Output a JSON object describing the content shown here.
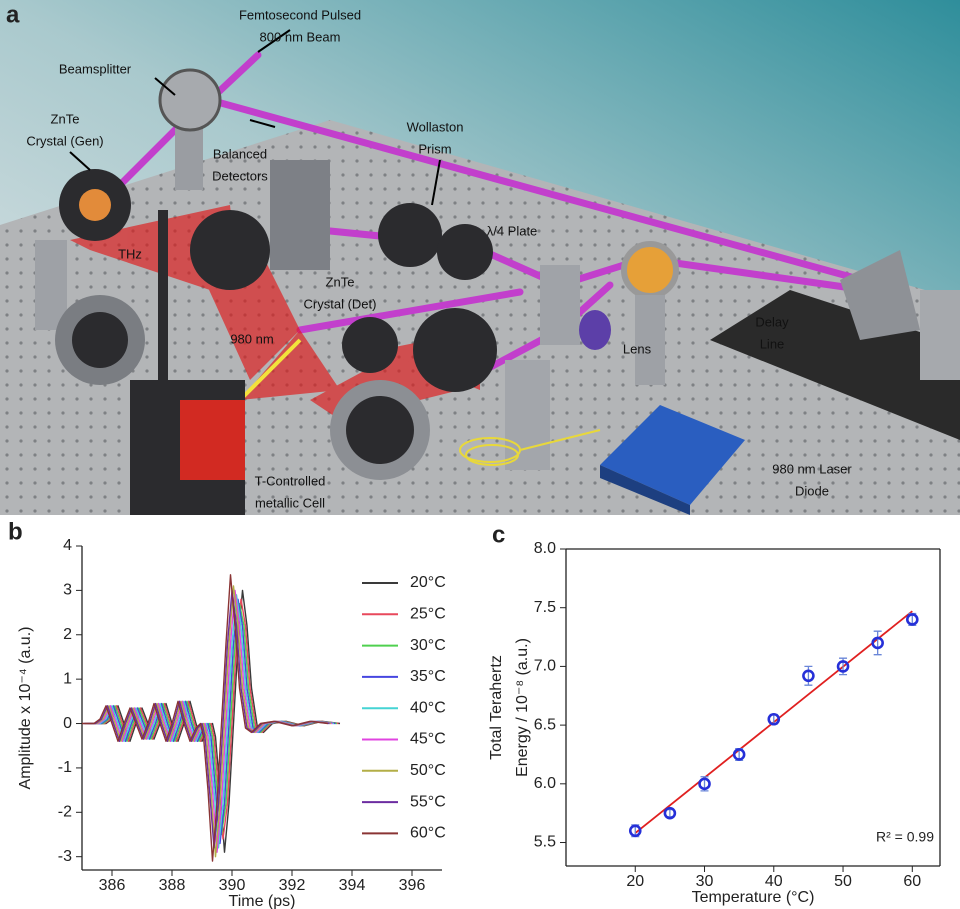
{
  "panel_a": {
    "label": "a",
    "annotations": [
      {
        "lines": [
          "Femtosecond Pulsed",
          "800 nm Beam"
        ]
      },
      {
        "lines": [
          "Beamsplitter"
        ]
      },
      {
        "lines": [
          "ZnTe",
          "Crystal (Gen)"
        ]
      },
      {
        "lines": [
          "Balanced",
          "Detectors"
        ]
      },
      {
        "lines": [
          "Wollaston",
          "Prism"
        ]
      },
      {
        "lines": [
          "λ/4 Plate"
        ]
      },
      {
        "lines": [
          "THz"
        ]
      },
      {
        "lines": [
          "ZnTe",
          "Crystal (Det)"
        ]
      },
      {
        "lines": [
          "980 nm"
        ]
      },
      {
        "lines": [
          "Lens"
        ]
      },
      {
        "lines": [
          "Delay",
          "Line"
        ]
      },
      {
        "lines": [
          "T-Controlled",
          "metallic Cell"
        ]
      },
      {
        "lines": [
          "980 nm Laser",
          "Diode"
        ]
      }
    ]
  },
  "chart_data": [
    {
      "type": "line",
      "panel": "b",
      "xlabel": "Time (ps)",
      "ylabel": "Amplitude x 10⁻⁴ (a.u.)",
      "xlim": [
        385,
        397
      ],
      "ylim": [
        -3.3,
        4
      ],
      "xticks": [
        386,
        388,
        390,
        392,
        394,
        396
      ],
      "yticks": [
        -3,
        -2,
        -1,
        0,
        1,
        2,
        3,
        4
      ],
      "legend": "right",
      "series": [
        {
          "name": "20°C",
          "color": "#3a3a3a",
          "x": [
            385.4,
            385.8,
            386.0,
            386.2,
            386.4,
            386.6,
            386.8,
            387.0,
            387.2,
            387.4,
            387.6,
            387.8,
            388.0,
            388.2,
            388.4,
            388.6,
            388.8,
            389.0,
            389.2,
            389.35,
            389.45,
            389.6,
            389.75,
            389.9,
            390.05,
            390.2,
            390.35,
            390.5,
            390.65,
            390.85,
            391.05,
            391.35,
            391.8,
            392.4,
            393.0,
            393.6
          ],
          "values": [
            0,
            0,
            0.1,
            0.4,
            0,
            -0.4,
            0,
            0.35,
            0,
            -0.35,
            0,
            0.45,
            0,
            -0.4,
            0,
            0.5,
            0,
            -0.4,
            -0.1,
            0,
            -0.3,
            -1.5,
            -2.9,
            -1.8,
            0,
            1.8,
            3.0,
            2.2,
            0.8,
            -0.1,
            -0.2,
            0,
            0.05,
            -0.05,
            0.05,
            0
          ]
        },
        {
          "name": "25°C",
          "color": "#e8485c",
          "x": [
            385.35,
            385.75,
            385.95,
            386.15,
            386.35,
            386.55,
            386.75,
            386.95,
            387.15,
            387.35,
            387.55,
            387.75,
            387.95,
            388.15,
            388.35,
            388.55,
            388.75,
            388.95,
            389.15,
            389.3,
            389.4,
            389.55,
            389.7,
            389.85,
            390.0,
            390.15,
            390.3,
            390.45,
            390.6,
            390.8,
            391.0,
            391.3,
            391.75,
            392.35,
            392.95,
            393.55
          ],
          "values": [
            0,
            0,
            0.1,
            0.4,
            0,
            -0.4,
            0,
            0.35,
            0,
            -0.35,
            0,
            0.45,
            0,
            -0.4,
            0,
            0.5,
            0,
            -0.4,
            -0.1,
            0,
            -0.3,
            -1.5,
            -2.6,
            -1.8,
            0,
            1.8,
            2.8,
            2.2,
            0.8,
            -0.1,
            -0.2,
            0,
            0.05,
            -0.05,
            0.05,
            0
          ]
        },
        {
          "name": "30°C",
          "color": "#4fd04f",
          "x": [
            385.3,
            385.7,
            385.9,
            386.1,
            386.3,
            386.5,
            386.7,
            386.9,
            387.1,
            387.3,
            387.5,
            387.7,
            387.9,
            388.1,
            388.3,
            388.5,
            388.7,
            388.9,
            389.1,
            389.25,
            389.35,
            389.5,
            389.65,
            389.8,
            389.95,
            390.1,
            390.25,
            390.4,
            390.55,
            390.75,
            390.95,
            391.25,
            391.7,
            392.3,
            392.9,
            393.5
          ],
          "values": [
            0,
            0,
            0.1,
            0.4,
            0,
            -0.4,
            0,
            0.35,
            0,
            -0.35,
            0,
            0.45,
            0,
            -0.4,
            0,
            0.5,
            0,
            -0.4,
            -0.1,
            0,
            -0.3,
            -1.5,
            -2.5,
            -1.8,
            0,
            1.8,
            2.7,
            2.2,
            0.8,
            -0.1,
            -0.2,
            0,
            0.05,
            -0.05,
            0.05,
            0
          ]
        },
        {
          "name": "35°C",
          "color": "#4646e0",
          "x": [
            385.25,
            385.65,
            385.85,
            386.05,
            386.25,
            386.45,
            386.65,
            386.85,
            387.05,
            387.25,
            387.45,
            387.65,
            387.85,
            388.05,
            388.25,
            388.45,
            388.65,
            388.85,
            389.05,
            389.2,
            389.3,
            389.45,
            389.6,
            389.75,
            389.9,
            390.05,
            390.2,
            390.35,
            390.5,
            390.7,
            390.9,
            391.2,
            391.65,
            392.25,
            392.85,
            393.45
          ],
          "values": [
            0,
            0,
            0.1,
            0.4,
            0,
            -0.4,
            0,
            0.35,
            0,
            -0.35,
            0,
            0.45,
            0,
            -0.4,
            0,
            0.5,
            0,
            -0.4,
            -0.1,
            0,
            -0.3,
            -1.5,
            -2.7,
            -1.8,
            0,
            1.8,
            2.8,
            2.2,
            0.8,
            -0.1,
            -0.2,
            0,
            0.05,
            -0.05,
            0.05,
            0
          ]
        },
        {
          "name": "40°C",
          "color": "#45d4d4",
          "x": [
            385.2,
            385.6,
            385.8,
            386.0,
            386.2,
            386.4,
            386.6,
            386.8,
            387.0,
            387.2,
            387.4,
            387.6,
            387.8,
            388.0,
            388.2,
            388.4,
            388.6,
            388.8,
            389.0,
            389.15,
            389.25,
            389.4,
            389.55,
            389.7,
            389.85,
            390.0,
            390.15,
            390.3,
            390.45,
            390.65,
            390.85,
            391.15,
            391.6,
            392.2,
            392.8,
            393.4
          ],
          "values": [
            0,
            0,
            0.1,
            0.4,
            0,
            -0.4,
            0,
            0.35,
            0,
            -0.35,
            0,
            0.45,
            0,
            -0.4,
            0,
            0.5,
            0,
            -0.4,
            -0.1,
            0,
            -0.3,
            -1.5,
            -2.8,
            -1.8,
            0,
            1.8,
            2.9,
            2.2,
            0.8,
            -0.1,
            -0.2,
            0,
            0.05,
            -0.05,
            0.05,
            0
          ]
        },
        {
          "name": "45°C",
          "color": "#e044e0",
          "x": [
            385.15,
            385.55,
            385.75,
            385.95,
            386.15,
            386.35,
            386.55,
            386.75,
            386.95,
            387.15,
            387.35,
            387.55,
            387.75,
            387.95,
            388.15,
            388.35,
            388.55,
            388.75,
            388.95,
            389.1,
            389.2,
            389.35,
            389.5,
            389.65,
            389.8,
            389.95,
            390.1,
            390.25,
            390.4,
            390.6,
            390.8,
            391.1,
            391.55,
            392.15,
            392.75,
            393.35
          ],
          "values": [
            0,
            0,
            0.1,
            0.4,
            0,
            -0.4,
            0,
            0.35,
            0,
            -0.35,
            0,
            0.45,
            0,
            -0.4,
            0,
            0.5,
            0,
            -0.4,
            -0.1,
            0,
            -0.3,
            -1.5,
            -2.9,
            -1.8,
            0,
            1.8,
            3.0,
            2.2,
            0.8,
            -0.1,
            -0.2,
            0,
            0.05,
            -0.05,
            0.05,
            0
          ]
        },
        {
          "name": "50°C",
          "color": "#b3ae46",
          "x": [
            385.1,
            385.5,
            385.7,
            385.9,
            386.1,
            386.3,
            386.5,
            386.7,
            386.9,
            387.1,
            387.3,
            387.5,
            387.7,
            387.9,
            388.1,
            388.3,
            388.5,
            388.7,
            388.9,
            389.05,
            389.15,
            389.3,
            389.45,
            389.6,
            389.75,
            389.9,
            390.05,
            390.2,
            390.35,
            390.55,
            390.75,
            391.05,
            391.5,
            392.1,
            392.7,
            393.3
          ],
          "values": [
            0,
            0,
            0.1,
            0.4,
            0,
            -0.4,
            0,
            0.35,
            0,
            -0.35,
            0,
            0.45,
            0,
            -0.4,
            0,
            0.5,
            0,
            -0.4,
            -0.1,
            0,
            -0.3,
            -1.5,
            -3.0,
            -1.8,
            0,
            1.8,
            3.1,
            2.2,
            0.8,
            -0.1,
            -0.2,
            0,
            0.05,
            -0.05,
            0.05,
            0
          ]
        },
        {
          "name": "55°C",
          "color": "#6c2ca0",
          "x": [
            385.05,
            385.45,
            385.65,
            385.85,
            386.05,
            386.25,
            386.45,
            386.65,
            386.85,
            387.05,
            387.25,
            387.45,
            387.65,
            387.85,
            388.05,
            388.25,
            388.45,
            388.65,
            388.85,
            389.0,
            389.1,
            389.25,
            389.4,
            389.55,
            389.7,
            389.85,
            390.0,
            390.15,
            390.3,
            390.5,
            390.7,
            391.0,
            391.45,
            392.05,
            392.65,
            393.25
          ],
          "values": [
            0,
            0,
            0.1,
            0.4,
            0,
            -0.4,
            0,
            0.35,
            0,
            -0.35,
            0,
            0.45,
            0,
            -0.4,
            0,
            0.5,
            0,
            -0.4,
            -0.1,
            0,
            -0.3,
            -1.5,
            -2.8,
            -1.8,
            0,
            1.8,
            3.0,
            2.2,
            0.8,
            -0.1,
            -0.2,
            0,
            0.05,
            -0.05,
            0.05,
            0
          ]
        },
        {
          "name": "60°C",
          "color": "#8a3434",
          "x": [
            385.0,
            385.4,
            385.6,
            385.8,
            386.0,
            386.2,
            386.4,
            386.6,
            386.8,
            387.0,
            387.2,
            387.4,
            387.6,
            387.8,
            388.0,
            388.2,
            388.4,
            388.6,
            388.8,
            388.95,
            389.05,
            389.2,
            389.35,
            389.5,
            389.65,
            389.8,
            389.95,
            390.1,
            390.25,
            390.45,
            390.65,
            390.95,
            391.4,
            392.0,
            392.6,
            393.2
          ],
          "values": [
            0,
            0,
            0.1,
            0.4,
            0,
            -0.4,
            0,
            0.35,
            0,
            -0.35,
            0,
            0.45,
            0,
            -0.4,
            0,
            0.5,
            0,
            -0.4,
            -0.1,
            0,
            -0.3,
            -1.5,
            -3.1,
            -1.8,
            0,
            1.8,
            3.35,
            2.2,
            0.8,
            -0.1,
            -0.2,
            0,
            0.05,
            -0.05,
            0.05,
            0
          ]
        }
      ]
    },
    {
      "type": "scatter",
      "panel": "c",
      "xlabel": "Temperature (°C)",
      "ylabel": [
        "Total Terahertz",
        "Energy / 10⁻⁸ (a.u.)"
      ],
      "xlim": [
        10,
        64
      ],
      "ylim": [
        5.3,
        8.0
      ],
      "xticks": [
        20,
        30,
        40,
        50,
        60
      ],
      "yticks": [
        5.5,
        {
          "value": 6,
          "label": "6.0"
        },
        6.5,
        {
          "value": 7,
          "label": "7.0"
        },
        7.5,
        {
          "value": 8,
          "label": "8.0"
        }
      ],
      "series": [
        {
          "color": "#2630d8",
          "x": [
            20,
            25,
            30,
            35,
            40,
            45,
            50,
            55,
            60
          ],
          "values": [
            5.6,
            5.75,
            6.0,
            6.25,
            6.55,
            6.92,
            7.0,
            7.2,
            7.4
          ],
          "errors": [
            0.05,
            0.03,
            0.06,
            0.05,
            0.04,
            0.08,
            0.07,
            0.1,
            0.05
          ]
        }
      ],
      "fit": {
        "color": "#e02020",
        "x": [
          20,
          60
        ],
        "values": [
          5.58,
          7.47
        ]
      },
      "annotation": "R² = 0.99"
    }
  ]
}
